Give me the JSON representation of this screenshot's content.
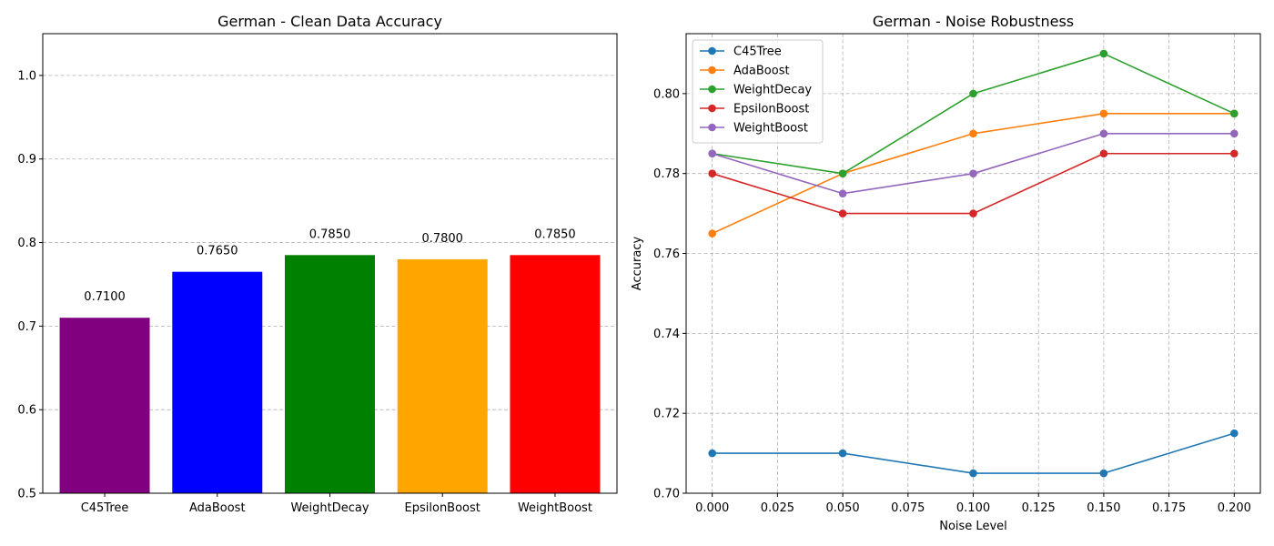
{
  "chart_data": [
    {
      "type": "bar",
      "title": "German - Clean Data Accuracy",
      "xlabel": "",
      "ylabel": "",
      "categories": [
        "C45Tree",
        "AdaBoost",
        "WeightDecay",
        "EpsilonBoost",
        "WeightBoost"
      ],
      "values": [
        0.71,
        0.765,
        0.785,
        0.78,
        0.785
      ],
      "value_labels": [
        "0.7100",
        "0.7650",
        "0.7850",
        "0.7800",
        "0.7850"
      ],
      "colors": [
        "#800080",
        "#0000ff",
        "#008000",
        "#ffa500",
        "#ff0000"
      ],
      "ylim": [
        0.5,
        1.05
      ],
      "yticks": [
        0.5,
        0.6,
        0.7,
        0.8,
        0.9,
        1.0
      ],
      "ytick_labels": [
        "0.5",
        "0.6",
        "0.7",
        "0.8",
        "0.9",
        "1.0"
      ],
      "grid": "y-dashed"
    },
    {
      "type": "line",
      "title": "German - Noise Robustness",
      "xlabel": "Noise Level",
      "ylabel": "Accuracy",
      "x": [
        0.0,
        0.05,
        0.1,
        0.15,
        0.2
      ],
      "series": [
        {
          "name": "C45Tree",
          "color": "#1f77b4",
          "values": [
            0.71,
            0.71,
            0.705,
            0.705,
            0.715
          ]
        },
        {
          "name": "AdaBoost",
          "color": "#ff7f0e",
          "values": [
            0.765,
            0.78,
            0.79,
            0.795,
            0.795
          ]
        },
        {
          "name": "WeightDecay",
          "color": "#2ca02c",
          "values": [
            0.785,
            0.78,
            0.8,
            0.81,
            0.795
          ]
        },
        {
          "name": "EpsilonBoost",
          "color": "#d62728",
          "values": [
            0.78,
            0.77,
            0.77,
            0.785,
            0.785
          ]
        },
        {
          "name": "WeightBoost",
          "color": "#9467bd",
          "values": [
            0.785,
            0.775,
            0.78,
            0.79,
            0.79
          ]
        }
      ],
      "xlim": [
        -0.01,
        0.21
      ],
      "ylim": [
        0.7,
        0.815
      ],
      "xticks": [
        0.0,
        0.025,
        0.05,
        0.075,
        0.1,
        0.125,
        0.15,
        0.175,
        0.2
      ],
      "xtick_labels": [
        "0.000",
        "0.025",
        "0.050",
        "0.075",
        "0.100",
        "0.125",
        "0.150",
        "0.175",
        "0.200"
      ],
      "yticks": [
        0.7,
        0.72,
        0.74,
        0.76,
        0.78,
        0.8
      ],
      "ytick_labels": [
        "0.70",
        "0.72",
        "0.74",
        "0.76",
        "0.78",
        "0.80"
      ],
      "grid": "both-dashed",
      "legend": "top-left"
    }
  ]
}
